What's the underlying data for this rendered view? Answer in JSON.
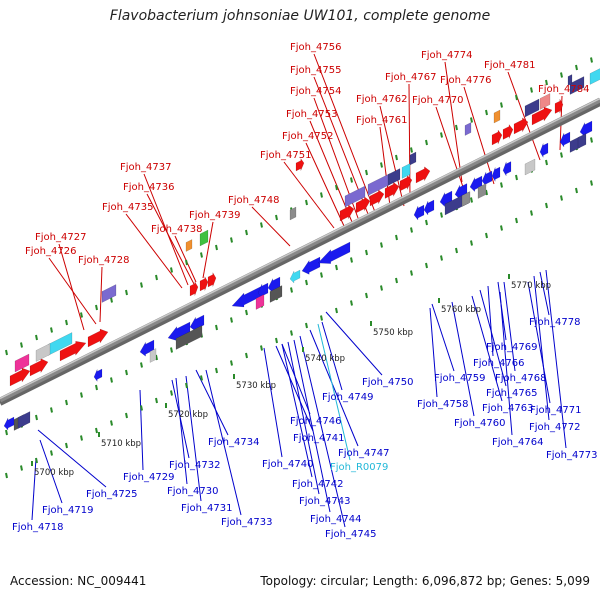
{
  "title": "Flavobacterium johnsoniae UW101, complete genome",
  "footer": {
    "accession": "Accession: NC_009441",
    "summary": "Topology: circular; Length: 6,096,872 bp; Genes: 5,099"
  },
  "colors": {
    "top_labels": "#cc0000",
    "bottom_labels": "#0000cc",
    "rna_label": "#22b8d8",
    "backbone": "#888888"
  },
  "ruler": [
    "5700 kbp",
    "5710 kbp",
    "5720 kbp",
    "5730 kbp",
    "5740 kbp",
    "5750 kbp",
    "5760 kbp",
    "5770 kbp"
  ],
  "top_labels": [
    "Fjoh_4756",
    "Fjoh_4755",
    "Fjoh_4754",
    "Fjoh_4753",
    "Fjoh_4752",
    "Fjoh_4751",
    "Fjoh_4774",
    "Fjoh_4781",
    "Fjoh_4767",
    "Fjoh_4776",
    "Fjoh_4784",
    "Fjoh_4762",
    "Fjoh_4770",
    "Fjoh_4761",
    "Fjoh_4737",
    "Fjoh_4736",
    "Fjoh_4735",
    "Fjoh_4748",
    "Fjoh_4739",
    "Fjoh_4738",
    "Fjoh_4727",
    "Fjoh_4726",
    "Fjoh_4728"
  ],
  "bottom_labels": [
    "Fjoh_4778",
    "Fjoh_4769",
    "Fjoh_4766",
    "Fjoh_4768",
    "Fjoh_4765",
    "Fjoh_4759",
    "Fjoh_4758",
    "Fjoh_4763",
    "Fjoh_4771",
    "Fjoh_4760",
    "Fjoh_4772",
    "Fjoh_4764",
    "Fjoh_4773",
    "Fjoh_4750",
    "Fjoh_4749",
    "Fjoh_4746",
    "Fjoh_4741",
    "Fjoh_4747",
    "Fjoh_4740",
    "Fjoh_R0079",
    "Fjoh_4742",
    "Fjoh_4743",
    "Fjoh_4744",
    "Fjoh_4745",
    "Fjoh_4734",
    "Fjoh_4732",
    "Fjoh_4729",
    "Fjoh_4730",
    "Fjoh_4731",
    "Fjoh_4733",
    "Fjoh_4725",
    "Fjoh_4719",
    "Fjoh_4718"
  ]
}
